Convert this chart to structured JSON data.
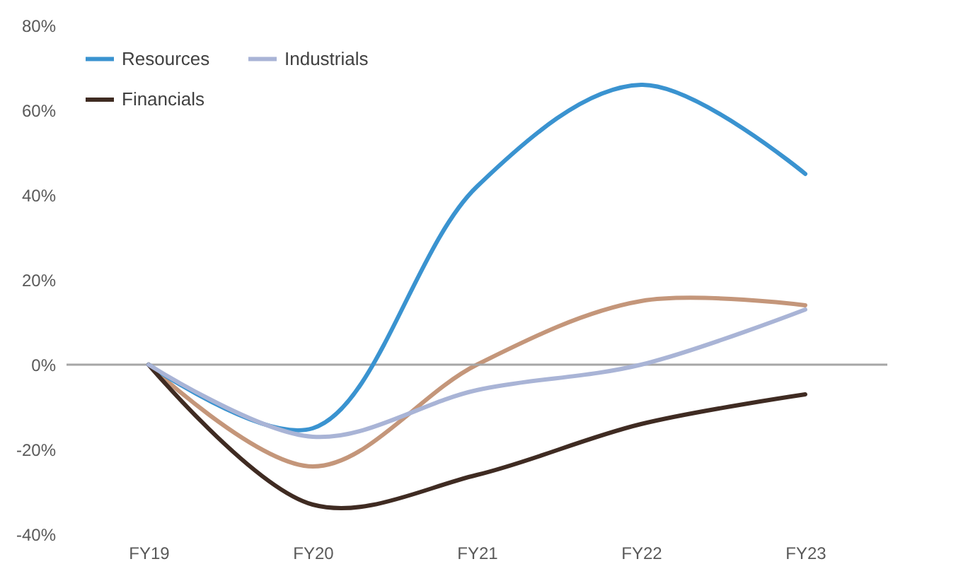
{
  "chart_data": {
    "type": "line",
    "categories": [
      "FY19",
      "FY20",
      "FY21",
      "FY22",
      "FY23"
    ],
    "series": [
      {
        "color": "#c4967a",
        "values": [
          0,
          -24,
          0,
          15,
          14
        ]
      },
      {
        "name": "Resources",
        "color": "#3a93d0",
        "values": [
          0,
          -15,
          42,
          66,
          45
        ]
      },
      {
        "name": "Financials",
        "color": "#3f2b22",
        "values": [
          0,
          -33,
          -26,
          -14,
          -7
        ]
      },
      {
        "name": "Industrials",
        "color": "#a9b4d6",
        "values": [
          0,
          -17,
          -6,
          0,
          13
        ]
      }
    ],
    "ylim": [
      -40,
      80
    ],
    "yticks": [
      {
        "value": -40,
        "label": "-40%"
      },
      {
        "value": -20,
        "label": "-20%"
      },
      {
        "value": 0,
        "label": "0%"
      },
      {
        "value": 20,
        "label": "20%"
      },
      {
        "value": 40,
        "label": "40%"
      },
      {
        "value": 60,
        "label": "60%"
      },
      {
        "value": 80,
        "label": "80%"
      }
    ],
    "ref_lines": [
      {
        "axis": "y",
        "value": 0,
        "color": "#a6a6a6"
      }
    ],
    "grid": false,
    "legend": "top left",
    "marker": "none",
    "line_style": "solid"
  }
}
